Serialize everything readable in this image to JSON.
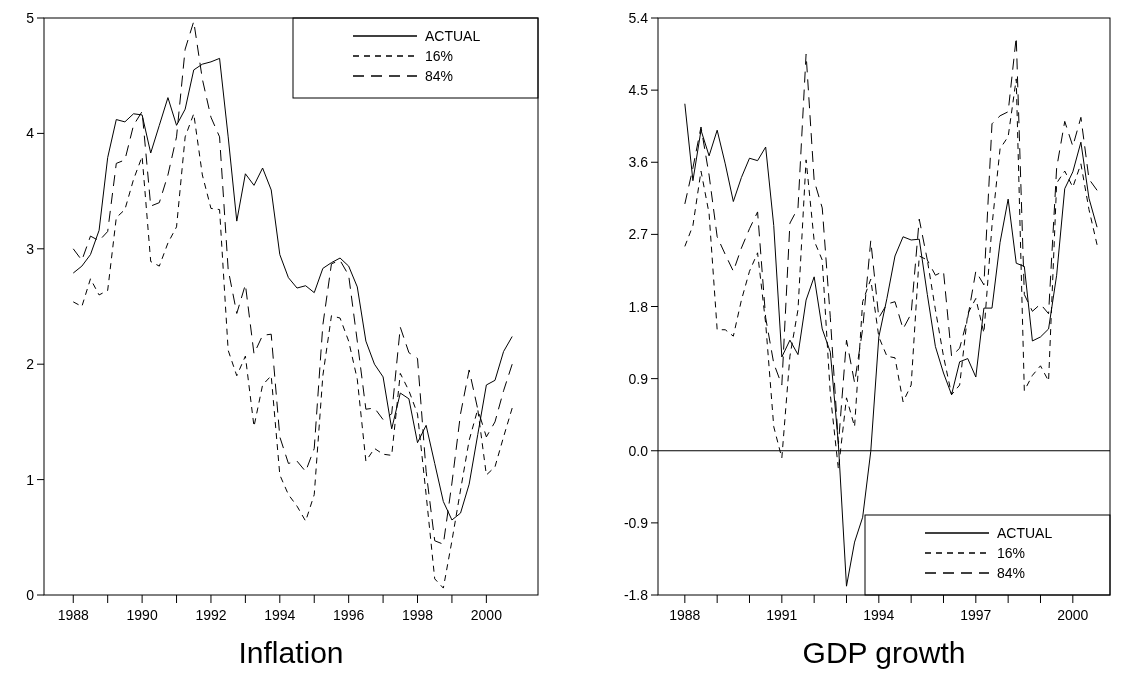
{
  "chart_data": [
    {
      "type": "line",
      "xlabel": "Inflation",
      "x": [
        1988,
        1988.25,
        1988.5,
        1988.75,
        1989,
        1989.25,
        1989.5,
        1989.75,
        1990,
        1990.25,
        1990.5,
        1990.75,
        1991,
        1991.25,
        1991.5,
        1991.75,
        1992,
        1992.25,
        1992.5,
        1992.75,
        1993,
        1993.25,
        1993.5,
        1993.75,
        1994,
        1994.25,
        1994.5,
        1994.75,
        1995,
        1995.25,
        1995.5,
        1995.75,
        1996,
        1996.25,
        1996.5,
        1996.75,
        1997,
        1997.25,
        1997.5,
        1997.75,
        1998,
        1998.25,
        1998.5,
        1998.75,
        1999,
        1999.25,
        1999.5,
        1999.75,
        2000,
        2000.25,
        2000.5,
        2000.75
      ],
      "xlim": [
        1987.15,
        2001.5
      ],
      "xticks": [
        1988,
        {
          "value": 1989,
          "label": null
        },
        1990,
        {
          "value": 1991,
          "label": null
        },
        1992,
        {
          "value": 1993,
          "label": null
        },
        1994,
        {
          "value": 1995,
          "label": null
        },
        1996,
        {
          "value": 1997,
          "label": null
        },
        1998,
        {
          "value": 1999,
          "label": null
        },
        2000
      ],
      "ylim": [
        0,
        5
      ],
      "yticks": [
        0,
        1,
        2,
        3,
        4,
        5
      ],
      "legend": "top right",
      "series": [
        {
          "name": "ACTUAL",
          "color": "#000000",
          "line_style": "solid",
          "values": [
            2.79,
            2.85,
            2.95,
            3.16,
            3.79,
            4.12,
            4.1,
            4.17,
            4.16,
            3.83,
            4.07,
            4.31,
            4.07,
            4.21,
            4.55,
            4.6,
            4.62,
            4.65,
            3.97,
            3.24,
            3.65,
            3.55,
            3.7,
            3.51,
            2.95,
            2.75,
            2.66,
            2.68,
            2.62,
            2.83,
            2.88,
            2.92,
            2.85,
            2.67,
            2.2,
            2,
            1.89,
            1.44,
            1.75,
            1.7,
            1.32,
            1.47,
            1.14,
            0.81,
            0.65,
            0.71,
            0.96,
            1.39,
            1.82,
            1.86,
            2.11,
            2.24
          ]
        },
        {
          "name": "16%",
          "color": "#000000",
          "line_style": "dashed",
          "values": [
            2.54,
            2.5,
            2.74,
            2.6,
            2.64,
            3.27,
            3.34,
            3.6,
            3.8,
            2.89,
            2.85,
            3.05,
            3.19,
            3.97,
            4.17,
            3.64,
            3.35,
            3.34,
            2.12,
            1.9,
            2.07,
            1.46,
            1.82,
            1.9,
            1.04,
            0.87,
            0.77,
            0.64,
            0.87,
            1.9,
            2.42,
            2.4,
            2.2,
            1.87,
            1.16,
            1.27,
            1.22,
            1.21,
            1.92,
            1.77,
            1.57,
            0.87,
            0.14,
            0.06,
            0.47,
            0.91,
            1.34,
            1.61,
            1.04,
            1.11,
            1.37,
            1.62
          ]
        },
        {
          "name": "84%",
          "color": "#000000",
          "line_style": "dashed",
          "values": [
            3,
            2.9,
            3.11,
            3.07,
            3.15,
            3.74,
            3.77,
            4.07,
            4.19,
            3.37,
            3.4,
            3.64,
            3.97,
            4.73,
            4.97,
            4.47,
            4.14,
            3.97,
            2.82,
            2.44,
            2.69,
            2.09,
            2.25,
            2.26,
            1.37,
            1.14,
            1.16,
            1.07,
            1.27,
            2.34,
            2.87,
            2.9,
            2.77,
            2.2,
            1.61,
            1.62,
            1.52,
            1.57,
            2.32,
            2.1,
            2.05,
            1.07,
            0.47,
            0.44,
            0.97,
            1.57,
            1.95,
            1.61,
            1.37,
            1.5,
            1.77,
            2
          ]
        }
      ]
    },
    {
      "type": "line",
      "xlabel": "GDP growth",
      "x": [
        1988,
        1988.25,
        1988.5,
        1988.75,
        1989,
        1989.25,
        1989.5,
        1989.75,
        1990,
        1990.25,
        1990.5,
        1990.75,
        1991,
        1991.25,
        1991.5,
        1991.75,
        1992,
        1992.25,
        1992.5,
        1992.75,
        1993,
        1993.25,
        1993.5,
        1993.75,
        1994,
        1994.25,
        1994.5,
        1994.75,
        1995,
        1995.25,
        1995.5,
        1995.75,
        1996,
        1996.25,
        1996.5,
        1996.75,
        1997,
        1997.25,
        1997.5,
        1997.75,
        1998,
        1998.25,
        1998.5,
        1998.75,
        1999,
        1999.25,
        1999.5,
        1999.75,
        2000,
        2000.25,
        2000.5,
        2000.75
      ],
      "xlim": [
        1987.17,
        2001.15
      ],
      "xticks": [
        1988,
        {
          "value": 1989,
          "label": null
        },
        {
          "value": 1990,
          "label": null
        },
        1991,
        {
          "value": 1992,
          "label": null
        },
        {
          "value": 1993,
          "label": null
        },
        1994,
        {
          "value": 1995,
          "label": null
        },
        {
          "value": 1996,
          "label": null
        },
        1997,
        {
          "value": 1998,
          "label": null
        },
        {
          "value": 1999,
          "label": null
        },
        2000
      ],
      "ylim": [
        -1.8,
        5.4
      ],
      "yticks": [
        -1.8,
        -0.9,
        {
          "value": 0,
          "label": "0.0"
        },
        0.9,
        1.8,
        2.7,
        3.6,
        4.5,
        5.4
      ],
      "legend": "bottom right",
      "ref_lines": [
        {
          "axis": "y",
          "value": 0,
          "color": "#000000"
        }
      ],
      "series": [
        {
          "name": "ACTUAL",
          "color": "#000000",
          "line_style": "solid",
          "values": [
            4.33,
            3.37,
            4,
            3.68,
            4,
            3.58,
            3.11,
            3.41,
            3.65,
            3.62,
            3.79,
            2.81,
            1.17,
            1.38,
            1.2,
            1.88,
            2.17,
            1.52,
            1.23,
            0.08,
            -1.69,
            -1.14,
            -0.83,
            -0.01,
            1.42,
            1.9,
            2.43,
            2.67,
            2.63,
            2.64,
            1.95,
            1.3,
            0.97,
            0.7,
            1.11,
            1.15,
            0.92,
            1.78,
            1.78,
            2.6,
            3.14,
            2.34,
            2.3,
            1.37,
            1.42,
            1.52,
            2.19,
            3.27,
            3.48,
            3.85,
            3.15,
            2.79
          ]
        },
        {
          "name": "16%",
          "color": "#000000",
          "line_style": "dashed",
          "values": [
            2.55,
            2.81,
            3.49,
            2.96,
            1.51,
            1.51,
            1.43,
            1.88,
            2.24,
            2.47,
            1.59,
            0.3,
            -0.09,
            1.18,
            1.76,
            3.63,
            2.62,
            2.38,
            0.7,
            -0.23,
            0.66,
            0.3,
            1.86,
            2.14,
            1.42,
            1.18,
            1.16,
            0.61,
            0.82,
            2.43,
            2.38,
            1.76,
            1.18,
            0.7,
            0.82,
            1.71,
            1.9,
            1.47,
            2.81,
            3.77,
            3.92,
            4.64,
            0.75,
            0.94,
            1.06,
            0.87,
            3.34,
            3.49,
            3.29,
            3.58,
            3.01,
            2.57
          ]
        },
        {
          "name": "84%",
          "color": "#000000",
          "line_style": "dashed",
          "values": [
            3.08,
            3.53,
            4.04,
            3.44,
            2.67,
            2.45,
            2.24,
            2.53,
            2.77,
            2.98,
            1.66,
            1.09,
            0.82,
            2.84,
            3.03,
            4.95,
            3.37,
            3.03,
            1.66,
            0.08,
            1.38,
            0.85,
            1.52,
            2.62,
            1.66,
            1.83,
            1.86,
            1.52,
            1.71,
            2.89,
            2.38,
            2.19,
            2.24,
            1.18,
            1.28,
            1.66,
            2.24,
            2.07,
            4.08,
            4.18,
            4.23,
            5.16,
            1.95,
            1.74,
            1.83,
            1.71,
            3.53,
            4.11,
            3.8,
            4.16,
            3.39,
            3.25
          ]
        }
      ]
    }
  ]
}
